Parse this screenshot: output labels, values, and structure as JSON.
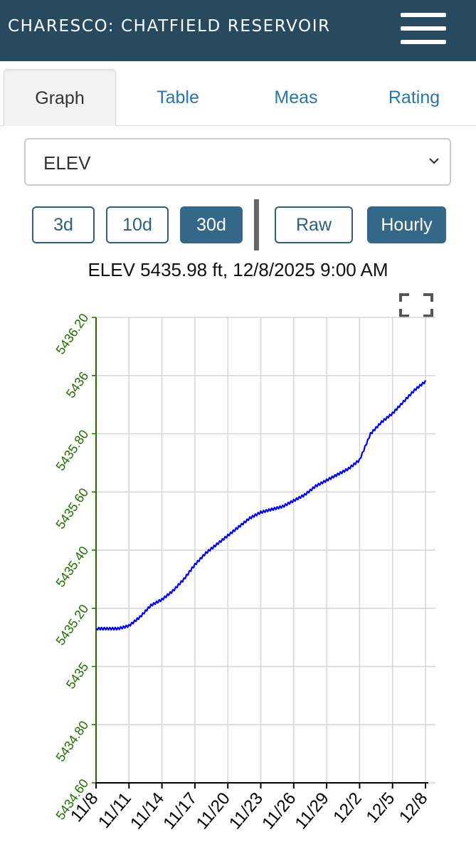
{
  "header": {
    "title": "CHARESCO: CHATFIELD RESERVOIR",
    "menu_icon": "hamburger-menu-icon"
  },
  "tabs": [
    {
      "label": "Graph",
      "active": true
    },
    {
      "label": "Table",
      "active": false
    },
    {
      "label": "Meas",
      "active": false
    },
    {
      "label": "Rating",
      "active": false
    }
  ],
  "parameter_select": {
    "value": "ELEV"
  },
  "range_buttons": [
    {
      "label": "3d",
      "selected": false
    },
    {
      "label": "10d",
      "selected": false
    },
    {
      "label": "30d",
      "selected": true
    }
  ],
  "mode_buttons": [
    {
      "label": "Raw",
      "selected": false
    },
    {
      "label": "Hourly",
      "selected": true
    }
  ],
  "status_text": "ELEV 5435.98 ft, 12/8/2025 9:00 AM",
  "fullscreen_icon": "fullscreen-icon",
  "colors": {
    "header": "#284a60",
    "accent": "#2a76a8",
    "button_on": "#346788",
    "series": "#0000ee",
    "axis_text": "#1f6e00"
  },
  "chart_data": {
    "type": "line",
    "x": [
      "11/8",
      "11/9",
      "11/10",
      "11/11",
      "11/12",
      "11/13",
      "11/14",
      "11/15",
      "11/16",
      "11/17",
      "11/18",
      "11/19",
      "11/20",
      "11/21",
      "11/22",
      "11/23",
      "11/24",
      "11/25",
      "11/26",
      "11/27",
      "11/28",
      "11/29",
      "11/30",
      "12/1",
      "12/2",
      "12/3",
      "12/4",
      "12/5",
      "12/6",
      "12/7",
      "12/8"
    ],
    "series": [
      {
        "values": [
          5435.13,
          5435.13,
          5435.13,
          5435.14,
          5435.17,
          5435.21,
          5435.23,
          5435.26,
          5435.3,
          5435.35,
          5435.39,
          5435.42,
          5435.45,
          5435.48,
          5435.51,
          5435.53,
          5435.54,
          5435.55,
          5435.57,
          5435.59,
          5435.62,
          5435.64,
          5435.66,
          5435.68,
          5435.71,
          5435.8,
          5435.84,
          5435.87,
          5435.91,
          5435.95,
          5435.98
        ]
      }
    ],
    "x_ticks": [
      "11/8",
      "11/11",
      "11/14",
      "11/17",
      "11/20",
      "11/23",
      "11/26",
      "11/29",
      "12/2",
      "12/5",
      "12/8"
    ],
    "y_ticks": [
      "5434.60",
      "5434.80",
      "5435",
      "5435.20",
      "5435.40",
      "5435.60",
      "5435.80",
      "5436",
      "5436.20"
    ],
    "ylim": [
      5434.6,
      5436.2
    ],
    "grid": true
  }
}
